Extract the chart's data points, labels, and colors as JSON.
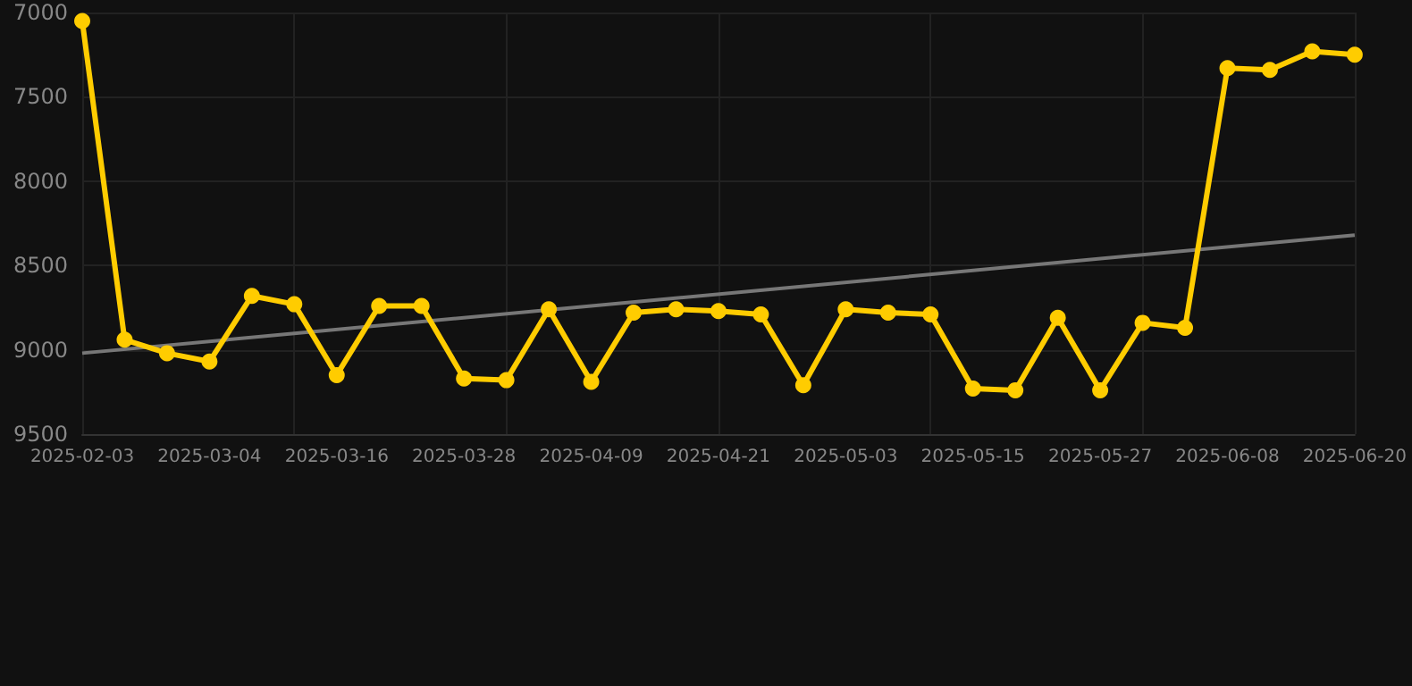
{
  "chart_data": {
    "type": "line",
    "categories": [
      "2025-02-03",
      null,
      null,
      "2025-03-04",
      null,
      null,
      "2025-03-16",
      null,
      null,
      "2025-03-28",
      null,
      null,
      "2025-04-09",
      null,
      null,
      "2025-04-21",
      null,
      null,
      "2025-05-03",
      null,
      null,
      "2025-05-15",
      null,
      null,
      "2025-05-27",
      null,
      null,
      "2025-06-08",
      null,
      null,
      "2025-06-20"
    ],
    "series": [
      {
        "color": "#ffcc00",
        "marker": "circle",
        "values": [
          7050,
          8940,
          9020,
          9070,
          8680,
          8730,
          9150,
          8740,
          8740,
          9170,
          9180,
          8760,
          9190,
          8780,
          8760,
          8770,
          8790,
          9210,
          8760,
          8780,
          8790,
          9230,
          9240,
          8810,
          9240,
          8840,
          8870,
          7330,
          7340,
          7230,
          7250
        ]
      },
      {
        "color": "#777777",
        "marker": "none",
        "values": [
          9020,
          null,
          null,
          null,
          null,
          null,
          null,
          null,
          null,
          null,
          null,
          null,
          null,
          null,
          null,
          null,
          null,
          null,
          null,
          null,
          null,
          null,
          null,
          null,
          null,
          null,
          null,
          null,
          null,
          null,
          8320
        ]
      }
    ],
    "ylim": [
      9500,
      7000
    ],
    "yticks": [
      7000,
      7500,
      8000,
      8500,
      9000,
      9500
    ],
    "grid": true
  }
}
